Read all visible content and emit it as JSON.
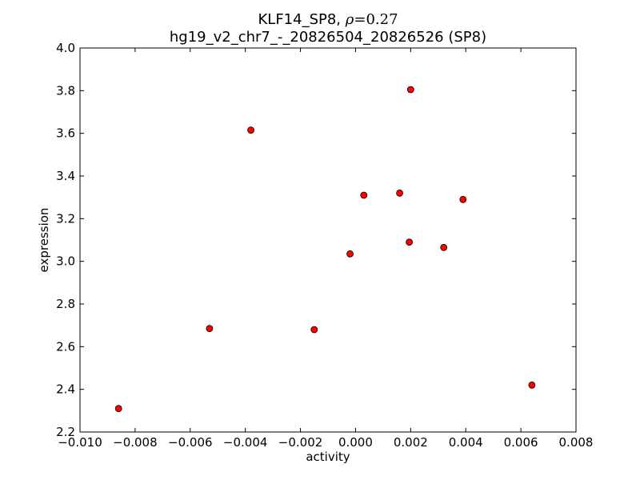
{
  "chart_data": {
    "type": "scatter",
    "title": {
      "prefix": "KLF14_SP8, ",
      "symbol": "ρ",
      "equals": "=",
      "value": "0.27",
      "subtitle": "hg19_v2_chr7_-_20826504_20826526 (SP8)"
    },
    "xlabel": "activity",
    "ylabel": "expression",
    "xlim": [
      -0.01,
      0.008
    ],
    "ylim": [
      2.2,
      4.0
    ],
    "xticks": [
      -0.01,
      -0.008,
      -0.006,
      -0.004,
      -0.002,
      0.0,
      0.002,
      0.004,
      0.006,
      0.008
    ],
    "xtick_labels": [
      "−0.010",
      "−0.008",
      "−0.006",
      "−0.004",
      "−0.002",
      "0.000",
      "0.002",
      "0.004",
      "0.006",
      "0.008"
    ],
    "yticks": [
      2.2,
      2.4,
      2.6,
      2.8,
      3.0,
      3.2,
      3.4,
      3.6,
      3.8,
      4.0
    ],
    "ytick_labels": [
      "2.2",
      "2.4",
      "2.6",
      "2.8",
      "3.0",
      "3.2",
      "3.4",
      "3.6",
      "3.8",
      "4.0"
    ],
    "grid": false,
    "marker_color": "#ff0000",
    "marker_edge_color": "#000000",
    "points": [
      {
        "x": -0.0086,
        "y": 2.31
      },
      {
        "x": -0.0053,
        "y": 2.685
      },
      {
        "x": -0.0038,
        "y": 3.615
      },
      {
        "x": -0.0015,
        "y": 2.68
      },
      {
        "x": -0.0002,
        "y": 3.035
      },
      {
        "x": 0.0003,
        "y": 3.31
      },
      {
        "x": 0.0016,
        "y": 3.32
      },
      {
        "x": 0.00195,
        "y": 3.09
      },
      {
        "x": 0.002,
        "y": 3.805
      },
      {
        "x": 0.0032,
        "y": 3.065
      },
      {
        "x": 0.0039,
        "y": 3.29
      },
      {
        "x": 0.0064,
        "y": 2.42
      }
    ]
  }
}
